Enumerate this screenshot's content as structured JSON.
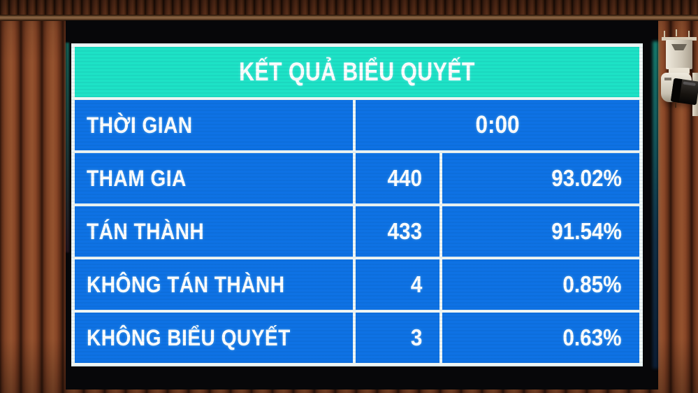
{
  "board": {
    "title": "KẾT QUẢ BIỂU QUYẾT",
    "rows": [
      {
        "label": "THỜI GIAN",
        "time": "0:00"
      },
      {
        "label": "THAM GIA",
        "count": "440",
        "percent": "93.02%"
      },
      {
        "label": "TÁN THÀNH",
        "count": "433",
        "percent": "91.54%"
      },
      {
        "label": "KHÔNG TÁN THÀNH",
        "count": "4",
        "percent": "0.85%"
      },
      {
        "label": "KHÔNG BIỂU QUYẾT",
        "count": "3",
        "percent": "0.63%"
      }
    ],
    "colors": {
      "header_bg": "#1de2c6",
      "cell_bg": "#0e72e4",
      "grid": "#eef6f5",
      "text": "#ffffff"
    }
  },
  "environment": {
    "objects": [
      "wooden-slat-wall",
      "wood-rail",
      "led-display",
      "surveillance-camera"
    ]
  }
}
